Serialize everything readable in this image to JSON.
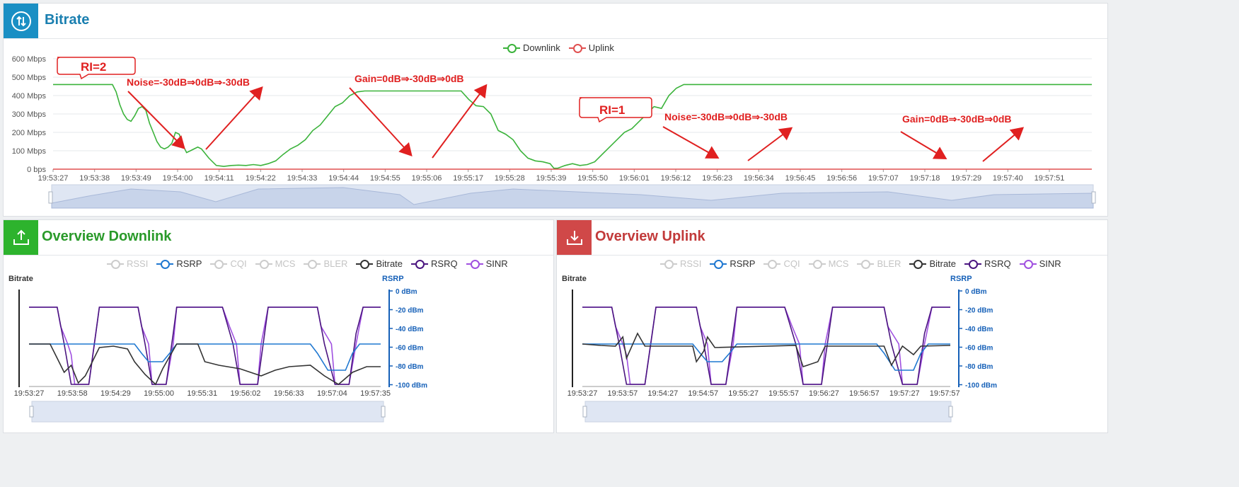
{
  "bitrate_panel": {
    "title": "Bitrate",
    "icon": "updown-arrows-icon",
    "legend": [
      {
        "label": "Downlink",
        "color": "#3bb33b"
      },
      {
        "label": "Uplink",
        "color": "#e05050"
      }
    ],
    "annotations": {
      "ri2": "RI=2",
      "ri1": "RI=1",
      "noise1": "Noise=-30dB⇒0dB⇒-30dB",
      "gain1": "Gain=0dB⇒-30dB⇒0dB",
      "noise2": "Noise=-30dB⇒0dB⇒-30dB",
      "gain2": "Gain=0dB⇒-30dB⇒0dB"
    }
  },
  "overview_downlink": {
    "title": "Overview Downlink",
    "icon": "upload-icon",
    "legend": [
      {
        "label": "RSSI",
        "active": false,
        "color": "#cccccc"
      },
      {
        "label": "RSRP",
        "active": true,
        "color": "#1f78d1"
      },
      {
        "label": "CQI",
        "active": false,
        "color": "#cccccc"
      },
      {
        "label": "MCS",
        "active": false,
        "color": "#cccccc"
      },
      {
        "label": "BLER",
        "active": false,
        "color": "#cccccc"
      },
      {
        "label": "Bitrate",
        "active": true,
        "color": "#333333"
      },
      {
        "label": "RSRQ",
        "active": true,
        "color": "#4b1580"
      },
      {
        "label": "SINR",
        "active": true,
        "color": "#a050e0"
      }
    ],
    "left_axis_title": "Bitrate",
    "right_axis_title": "RSRP",
    "right_ticks": [
      "0 dBm",
      "-20 dBm",
      "-40 dBm",
      "-60 dBm",
      "-80 dBm",
      "-100 dBm"
    ],
    "x_ticks": [
      "19:53:27",
      "19:53:58",
      "19:54:29",
      "19:55:00",
      "19:55:31",
      "19:56:02",
      "19:56:33",
      "19:57:04",
      "19:57:35"
    ]
  },
  "overview_uplink": {
    "title": "Overview Uplink",
    "icon": "download-icon",
    "legend": [
      {
        "label": "RSSI",
        "active": false,
        "color": "#cccccc"
      },
      {
        "label": "RSRP",
        "active": true,
        "color": "#1f78d1"
      },
      {
        "label": "CQI",
        "active": false,
        "color": "#cccccc"
      },
      {
        "label": "MCS",
        "active": false,
        "color": "#cccccc"
      },
      {
        "label": "BLER",
        "active": false,
        "color": "#cccccc"
      },
      {
        "label": "Bitrate",
        "active": true,
        "color": "#333333"
      },
      {
        "label": "RSRQ",
        "active": true,
        "color": "#4b1580"
      },
      {
        "label": "SINR",
        "active": true,
        "color": "#a050e0"
      }
    ],
    "left_axis_title": "Bitrate",
    "right_axis_title": "RSRP",
    "right_ticks": [
      "0 dBm",
      "-20 dBm",
      "-40 dBm",
      "-60 dBm",
      "-80 dBm",
      "-100 dBm"
    ],
    "x_ticks": [
      "19:53:27",
      "19:53:57",
      "19:54:27",
      "19:54:57",
      "19:55:27",
      "19:55:57",
      "19:56:27",
      "19:56:57",
      "19:57:27",
      "19:57:57"
    ]
  },
  "chart_data": [
    {
      "type": "line",
      "title": "Bitrate",
      "y_ticks": [
        "0 bps",
        "100 Mbps",
        "200 Mbps",
        "300 Mbps",
        "400 Mbps",
        "500 Mbps",
        "600 Mbps"
      ],
      "ylim": [
        0,
        600
      ],
      "x_ticks": [
        "19:53:27",
        "19:53:38",
        "19:53:49",
        "19:54:00",
        "19:54:11",
        "19:54:22",
        "19:54:33",
        "19:54:44",
        "19:54:55",
        "19:55:06",
        "19:55:17",
        "19:55:28",
        "19:55:39",
        "19:55:50",
        "19:56:01",
        "19:56:12",
        "19:56:23",
        "19:56:34",
        "19:56:45",
        "19:56:56",
        "19:57:07",
        "19:57:18",
        "19:57:29",
        "19:57:40",
        "19:57:51"
      ],
      "xlim_s": [
        0,
        280
      ],
      "series": [
        {
          "name": "Downlink",
          "color": "#3bb33b",
          "t": [
            0,
            16,
            17,
            18,
            19,
            20,
            21,
            22,
            23,
            24,
            25,
            26,
            27,
            28,
            29,
            30,
            31,
            32,
            33,
            34,
            35,
            36,
            37,
            38,
            39,
            40,
            42,
            44,
            46,
            48,
            50,
            52,
            54,
            56,
            58,
            60,
            62,
            64,
            66,
            68,
            70,
            72,
            74,
            76,
            78,
            80,
            82,
            84,
            86,
            88,
            90,
            100,
            110,
            112,
            114,
            116,
            118,
            120,
            122,
            124,
            126,
            128,
            130,
            132,
            134,
            135,
            136,
            138,
            140,
            142,
            144,
            146,
            148,
            150,
            152,
            154,
            156,
            158,
            160,
            162,
            164,
            166,
            168,
            170,
            172,
            174,
            176,
            178,
            180,
            182,
            185,
            188,
            190,
            195,
            200,
            205,
            208,
            210,
            212,
            214,
            216,
            218,
            220,
            222,
            224,
            226,
            228,
            230,
            232,
            234,
            236,
            238,
            240,
            242,
            244,
            246,
            248,
            250,
            252,
            254,
            256,
            258,
            260,
            262,
            264,
            266,
            268,
            270,
            272,
            280
          ],
          "values": [
            460,
            460,
            420,
            350,
            300,
            270,
            260,
            290,
            330,
            340,
            320,
            250,
            200,
            150,
            120,
            110,
            120,
            140,
            200,
            190,
            130,
            90,
            100,
            110,
            120,
            110,
            60,
            20,
            15,
            20,
            22,
            20,
            25,
            20,
            30,
            45,
            80,
            110,
            130,
            160,
            210,
            240,
            290,
            340,
            360,
            400,
            420,
            425,
            425,
            425,
            425,
            425,
            425,
            380,
            345,
            340,
            300,
            210,
            190,
            160,
            100,
            60,
            45,
            40,
            30,
            5,
            5,
            20,
            30,
            20,
            25,
            40,
            80,
            120,
            160,
            200,
            220,
            260,
            300,
            340,
            330,
            400,
            440,
            460,
            460,
            460,
            460,
            460,
            460,
            460,
            460,
            460,
            460,
            460,
            460,
            460,
            460,
            460,
            460,
            460,
            460,
            460,
            460,
            460,
            460,
            460,
            460,
            460,
            460,
            460,
            460,
            460,
            460,
            460,
            460,
            460,
            460,
            460,
            460,
            460,
            460,
            460,
            460,
            460,
            460,
            460,
            460,
            460,
            460,
            460
          ]
        },
        {
          "name": "Uplink",
          "color": "#e05050",
          "t": [
            0,
            280
          ],
          "values": [
            0,
            0
          ]
        }
      ]
    }
  ]
}
